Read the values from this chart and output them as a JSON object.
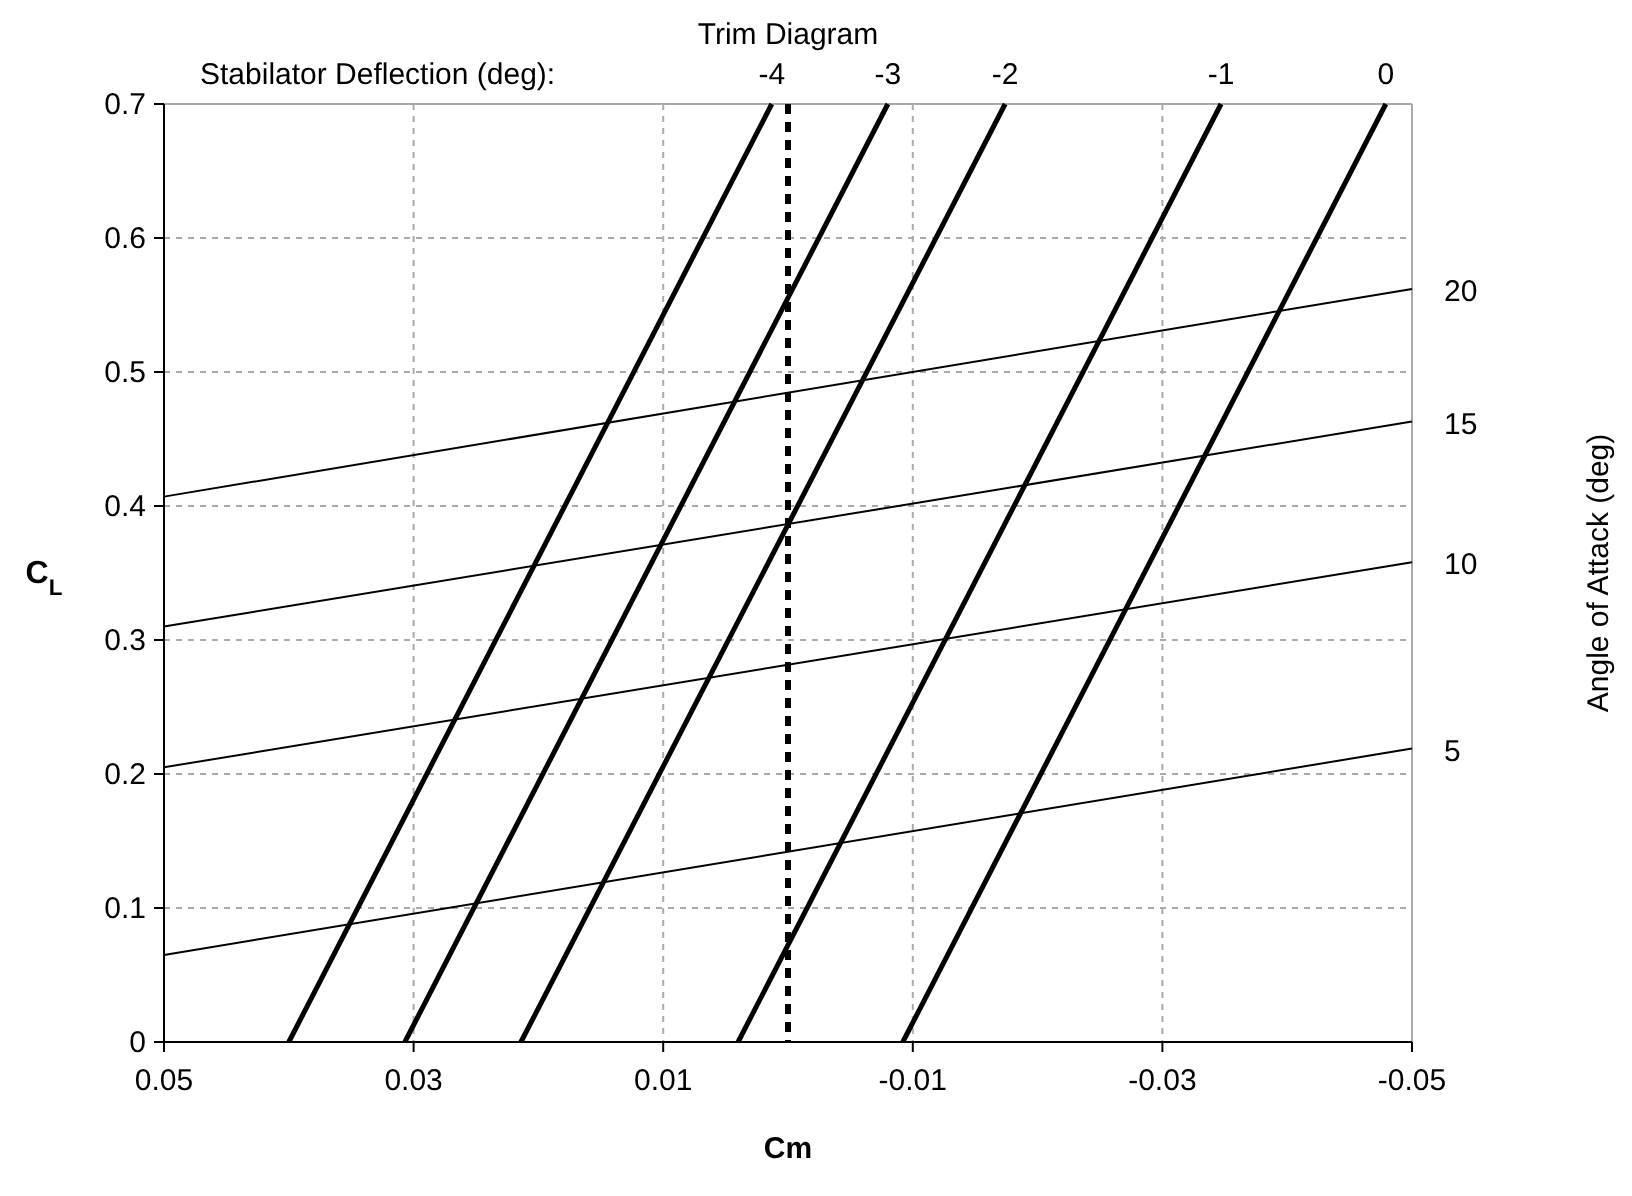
{
  "chart_data": {
    "type": "line",
    "title": "Trim Diagram",
    "xlabel": "Cm",
    "ylabel": "C$_{L}$",
    "annotations": [
      "Stabilator Deflection (deg):",
      "Angle of Attack (deg)"
    ],
    "xlim": [
      0.05,
      -0.05
    ],
    "xticks": [
      0.05,
      0.03,
      0.01,
      -0.01,
      -0.03,
      -0.05
    ],
    "ylim": [
      0,
      0.7
    ],
    "yticks": [
      0,
      0.1,
      0.2,
      0.3,
      0.4,
      0.5,
      0.6,
      0.7
    ],
    "grid": true,
    "ref_lines": [
      {
        "axis": "x",
        "value": 0,
        "color": "#000000",
        "line_style": "dashed"
      }
    ],
    "series": [
      {
        "name": "20",
        "color": "#000000",
        "x": [
          0.05,
          -0.05
        ],
        "values": [
          0.407,
          0.562
        ]
      },
      {
        "name": "15",
        "color": "#000000",
        "x": [
          0.05,
          -0.05
        ],
        "values": [
          0.31,
          0.463
        ]
      },
      {
        "name": "10",
        "color": "#000000",
        "x": [
          0.05,
          -0.05
        ],
        "values": [
          0.205,
          0.358
        ]
      },
      {
        "name": "5",
        "color": "#000000",
        "x": [
          0.05,
          -0.05
        ],
        "values": [
          0.065,
          0.219
        ]
      },
      {
        "name": "-4",
        "color": "#000000",
        "x": [
          0.04,
          0.0013
        ],
        "values": [
          0,
          0.7
        ]
      },
      {
        "name": "-3",
        "color": "#000000",
        "x": [
          0.0307,
          -0.008
        ],
        "values": [
          0,
          0.7
        ]
      },
      {
        "name": "-2",
        "color": "#000000",
        "x": [
          0.0214,
          -0.0174
        ],
        "values": [
          0,
          0.7
        ]
      },
      {
        "name": "-1",
        "color": "#000000",
        "x": [
          0.004,
          -0.0347
        ],
        "values": [
          0,
          0.7
        ]
      },
      {
        "name": "0",
        "color": "#000000",
        "x": [
          -0.0092,
          -0.0479
        ],
        "values": [
          0,
          0.7
        ]
      }
    ]
  }
}
